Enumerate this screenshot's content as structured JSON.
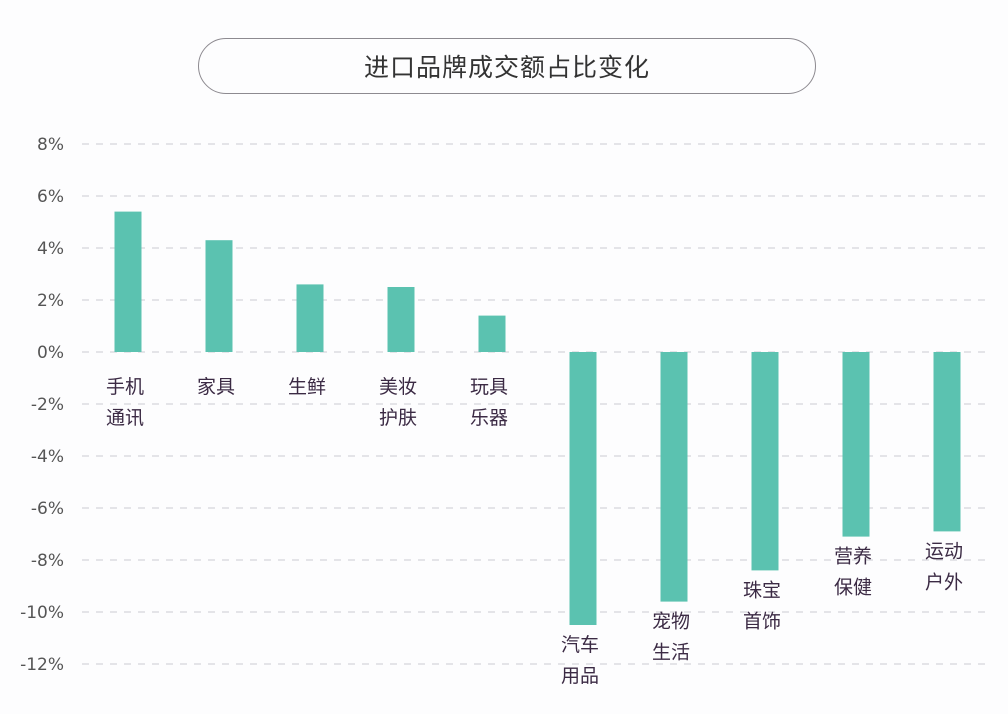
{
  "chart_data": {
    "type": "bar",
    "title": "进口品牌成交额占比变化",
    "categories": [
      [
        "手机",
        "通讯"
      ],
      [
        "家具"
      ],
      [
        "生鲜"
      ],
      [
        "美妆",
        "护肤"
      ],
      [
        "玩具",
        "乐器"
      ],
      [
        "汽车",
        "用品"
      ],
      [
        "宠物",
        "生活"
      ],
      [
        "珠宝",
        "首饰"
      ],
      [
        "营养",
        "保健"
      ],
      [
        "运动",
        "户外"
      ]
    ],
    "values": [
      5.4,
      4.3,
      2.6,
      2.5,
      1.4,
      -10.5,
      -9.6,
      -8.4,
      -7.1,
      -6.9
    ],
    "unit": "%",
    "ylim": [
      -12,
      8
    ],
    "yticks": [
      "8%",
      "6%",
      "4%",
      "2%",
      "0%",
      "-2%",
      "-4%",
      "-6%",
      "-8%",
      "-10%",
      "-12%"
    ],
    "grid": true,
    "legend": "none",
    "colors": {
      "bar": "#5bc2b0",
      "label": "#3b2a44",
      "tick": "#555555",
      "grid": "#d6d6da"
    }
  }
}
